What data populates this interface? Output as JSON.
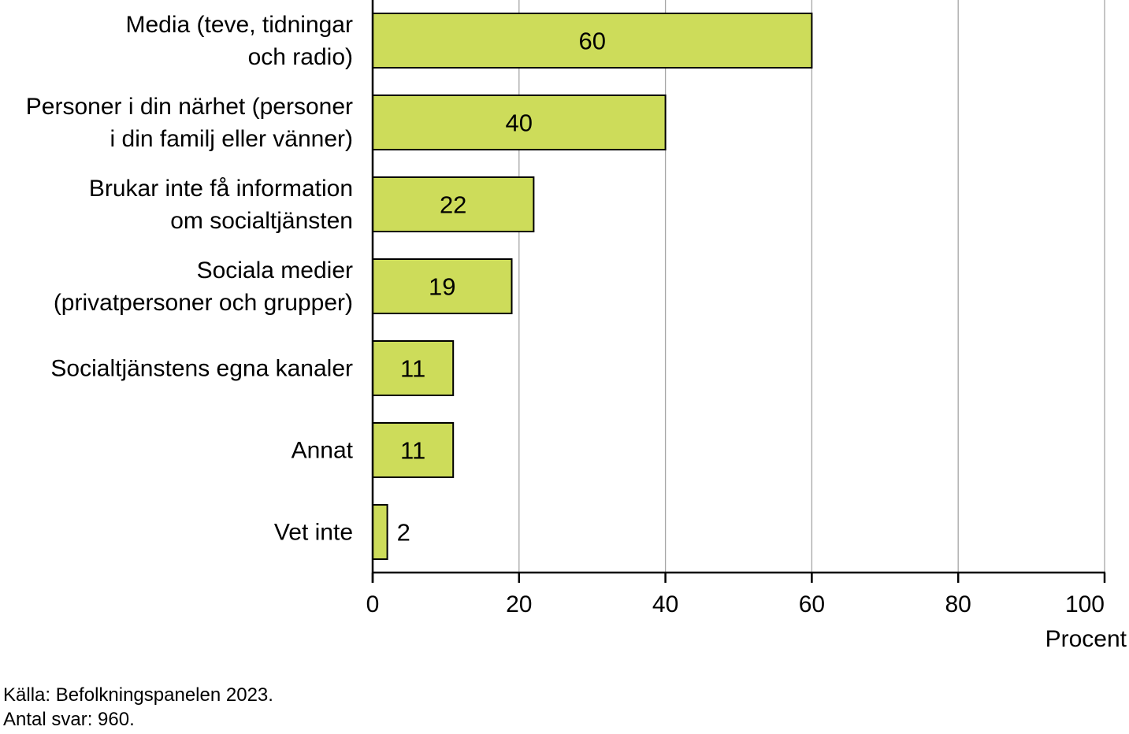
{
  "chart_data": {
    "type": "bar",
    "orientation": "horizontal",
    "categories": [
      [
        "Media (teve, tidningar",
        "och radio)"
      ],
      [
        "Personer i din närhet (personer",
        "i din familj eller vänner)"
      ],
      [
        "Brukar inte få information",
        "om socialtjänsten"
      ],
      [
        "Sociala medier",
        "(privatpersoner och grupper)"
      ],
      [
        "Socialtjänstens egna kanaler"
      ],
      [
        "Annat"
      ],
      [
        "Vet inte"
      ]
    ],
    "values": [
      60,
      40,
      22,
      19,
      11,
      11,
      2
    ],
    "data_labels": [
      "60",
      "40",
      "22",
      "19",
      "11",
      "11",
      "2"
    ],
    "xlim": [
      0,
      100
    ],
    "xticks": [
      0,
      20,
      40,
      60,
      80,
      100
    ],
    "xtick_labels": [
      "0",
      "20",
      "40",
      "60",
      "80",
      "100"
    ],
    "xlabel": "Procent",
    "grid": "vertical",
    "colors": {
      "bar_fill": "#cddc5a",
      "bar_stroke": "#000000",
      "grid": "#a6a6a6"
    }
  },
  "source": {
    "line1": "Källa: Befolkningspanelen 2023.",
    "line2": "Antal svar: 960."
  }
}
